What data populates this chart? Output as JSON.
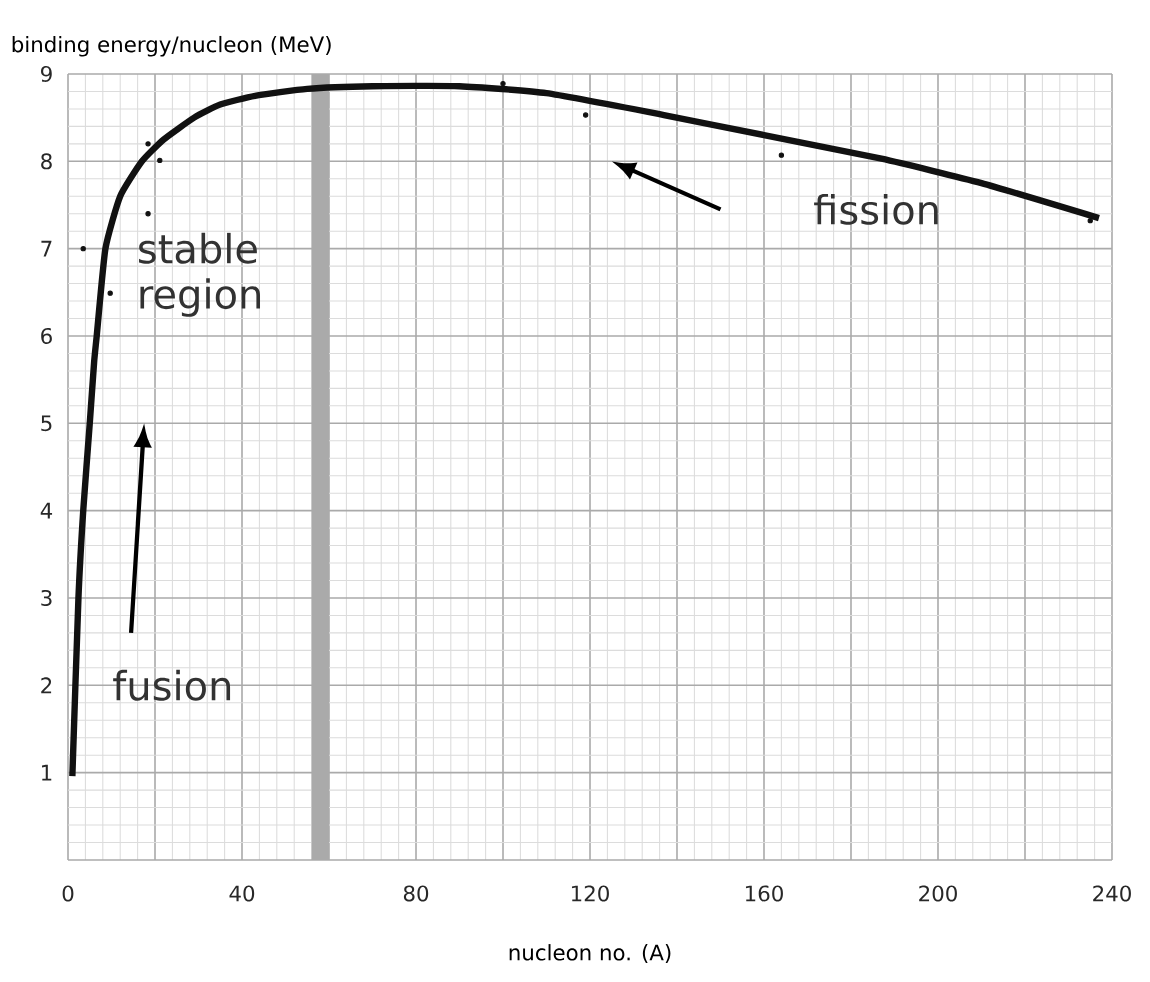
{
  "chart_data": {
    "type": "line",
    "xlabel": "nucleon no. (A)",
    "ylabel": "binding energy/nucleon (MeV)",
    "xlim": [
      0,
      240
    ],
    "ylim": [
      0,
      9
    ],
    "xticks": [
      0,
      {
        "value": 20,
        "label": null
      },
      40,
      {
        "value": 60,
        "label": null
      },
      80,
      {
        "value": 100,
        "label": null
      },
      120,
      {
        "value": 140,
        "label": null
      },
      160,
      {
        "value": 180,
        "label": null
      },
      200,
      {
        "value": 220,
        "label": null
      },
      240
    ],
    "yticks": [
      {
        "value": 0,
        "label": null
      },
      1,
      2,
      3,
      4,
      5,
      6,
      7,
      8,
      9
    ],
    "grid": true,
    "series": [
      {
        "color": "#111111",
        "marker": "none",
        "x": [
          1,
          2.4,
          3.5,
          5,
          6,
          6.6,
          8.6,
          12,
          17,
          22,
          29,
          35,
          43,
          55,
          70,
          90,
          110,
          137,
          160,
          187,
          210,
          237
        ],
        "values": [
          0.96,
          3,
          4,
          5,
          5.7,
          6,
          7,
          7.6,
          8,
          8.25,
          8.5,
          8.65,
          8.75,
          8.83,
          8.86,
          8.86,
          8.78,
          8.53,
          8.3,
          8.03,
          7.75,
          7.35
        ]
      },
      {
        "type": "scatter",
        "color": "#111111",
        "marker": "circle",
        "x": [
          3.5,
          5.8,
          9.7,
          18.4,
          18.4,
          21.1,
          100,
          119,
          164,
          196,
          235
        ],
        "values": [
          7.0,
          null,
          6.49,
          8.2,
          7.4,
          8.01,
          8.89,
          8.53,
          8.07,
          null,
          7.32
        ]
      }
    ],
    "bands": [
      {
        "axis": "x",
        "from": 56,
        "to": 60,
        "label": "stable region",
        "color": "#aaaaaa"
      }
    ],
    "annotations": [
      "fusion",
      "fission"
    ]
  }
}
